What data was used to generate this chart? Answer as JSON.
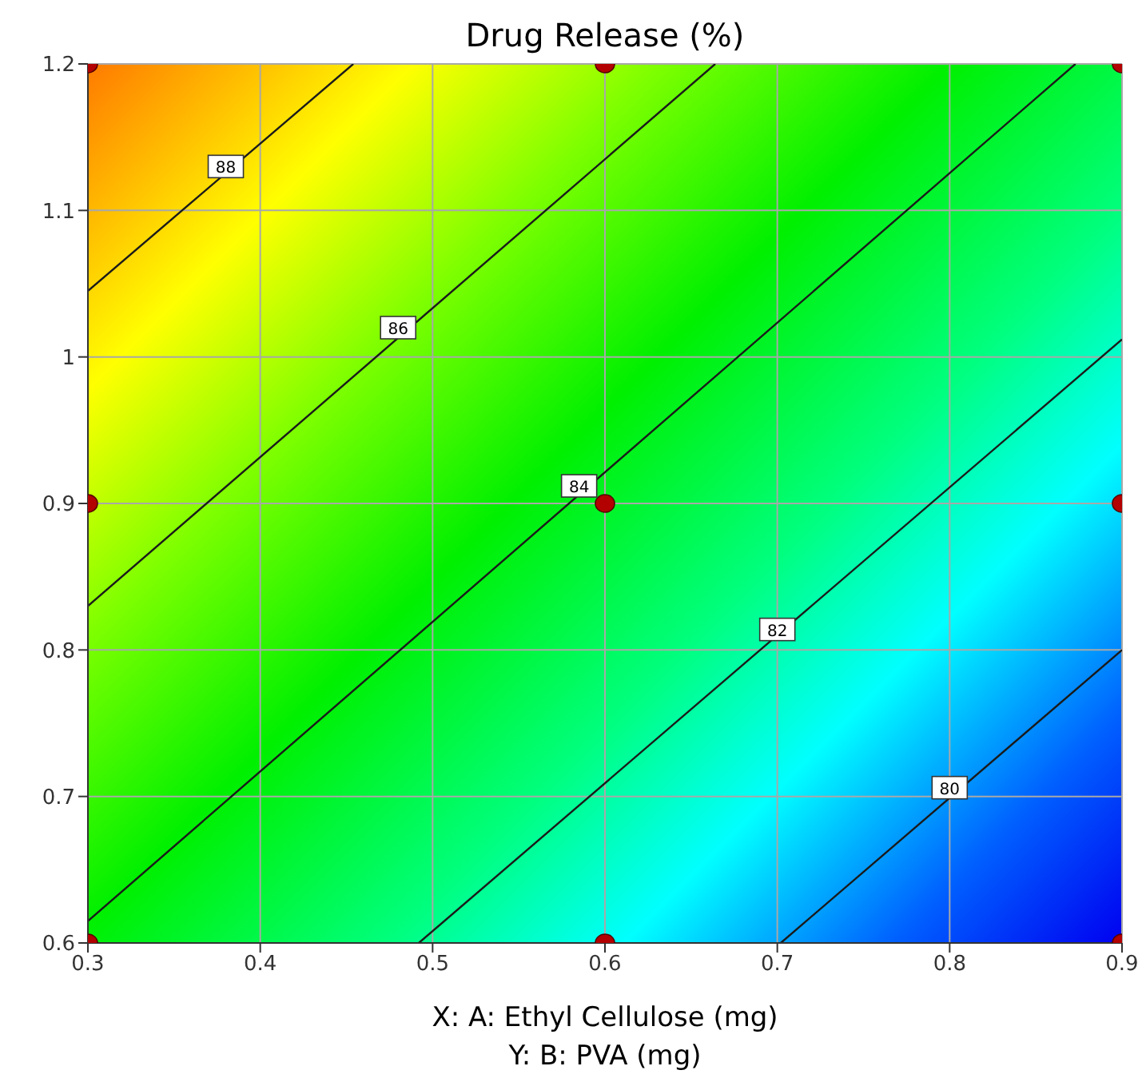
{
  "chart_data": {
    "type": "line",
    "title": "Drug Release (%)",
    "xlabel": "X: A: Ethyl Cellulose (mg)",
    "xlim": [
      0.3,
      0.9
    ],
    "ylim": [
      0.6,
      1.2
    ],
    "xticks": [
      0.3,
      0.4,
      0.5,
      0.6,
      0.7,
      0.8,
      0.9
    ],
    "yticks": [
      0.6,
      0.7,
      0.8,
      0.9,
      1,
      1.1,
      1.2
    ],
    "grid": true,
    "series": [
      {
        "color": "#1a1a1a",
        "marker": "none",
        "x": [
          0.3,
          0.454
        ],
        "values": [
          1.045,
          1.2
        ]
      },
      {
        "color": "#1a1a1a",
        "marker": "none",
        "x": [
          0.3,
          0.664
        ],
        "values": [
          0.83,
          1.2
        ]
      },
      {
        "color": "#1a1a1a",
        "marker": "none",
        "x": [
          0.3,
          0.873
        ],
        "values": [
          0.615,
          1.2
        ]
      },
      {
        "color": "#1a1a1a",
        "marker": "none",
        "x": [
          0.492,
          0.9
        ],
        "values": [
          0.6,
          1.012
        ]
      },
      {
        "color": "#1a1a1a",
        "marker": "none",
        "x": [
          0.702,
          0.9
        ],
        "values": [
          0.6,
          0.8
        ]
      },
      {
        "type": "scatter",
        "color": "#b30000",
        "marker": "circle",
        "x": [
          0.3,
          0.3,
          0.3,
          0.6,
          0.6,
          0.6,
          0.9,
          0.9,
          0.9
        ],
        "values": [
          0.6,
          0.9,
          1.2,
          0.6,
          0.9,
          1.2,
          0.6,
          0.9,
          1.2
        ]
      }
    ],
    "annotations": [
      "Y: B: PVA (mg)",
      {
        "text": "88",
        "x": 0.38,
        "y": 1.13
      },
      {
        "text": "86",
        "x": 0.48,
        "y": 1.02
      },
      {
        "text": "84",
        "x": 0.585,
        "y": 0.912
      },
      {
        "text": "82",
        "x": 0.7,
        "y": 0.814
      },
      {
        "text": "80",
        "x": 0.8,
        "y": 0.706
      }
    ]
  }
}
